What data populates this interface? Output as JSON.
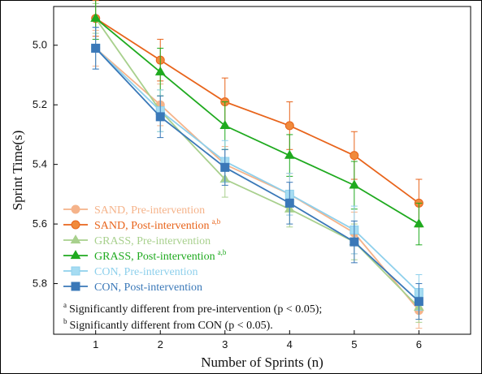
{
  "chart_data": {
    "type": "line",
    "xlabel": "Number of Sprints (n)",
    "ylabel": "Sprint Time(s)",
    "x": [
      1,
      2,
      3,
      4,
      5,
      6
    ],
    "xlim": [
      0.35,
      6.8
    ],
    "ylim": [
      4.87,
      5.97
    ],
    "y_inverted": true,
    "yticks": [
      5.0,
      5.2,
      5.4,
      5.6,
      5.8
    ],
    "ytick_labels": [
      "5.0",
      "5.2",
      "5.4",
      "5.6",
      "5.8"
    ],
    "xtick_labels": [
      "1",
      "2",
      "3",
      "4",
      "5",
      "6"
    ],
    "grid": false,
    "legend_position": "bottom-left",
    "series": [
      {
        "name": "SAND, Pre-intervention",
        "superscript": "",
        "color": "#f5b38a",
        "marker": "circle",
        "marker_fill": "#f5b38a",
        "values": [
          5.01,
          5.2,
          5.4,
          5.5,
          5.63,
          5.89
        ],
        "error": [
          0.06,
          0.07,
          0.06,
          0.07,
          0.07,
          0.06
        ]
      },
      {
        "name": "SAND, Post-intervention",
        "superscript": "a,b",
        "color": "#e8641b",
        "marker": "circle",
        "marker_fill": "#f08a3c",
        "values": [
          4.91,
          5.05,
          5.19,
          5.27,
          5.37,
          5.53
        ],
        "error": [
          0.06,
          0.07,
          0.08,
          0.08,
          0.08,
          0.08
        ]
      },
      {
        "name": "GRASS, Pre-intervention",
        "superscript": "",
        "color": "#a8d08d",
        "marker": "triangle",
        "marker_fill": "#a8d08d",
        "values": [
          4.91,
          5.22,
          5.45,
          5.55,
          5.66,
          5.88
        ],
        "error": [
          0.05,
          0.07,
          0.06,
          0.06,
          0.06,
          0.05
        ]
      },
      {
        "name": "GRASS, Post-intervention",
        "superscript": "a,b",
        "color": "#1faa1f",
        "marker": "triangle",
        "marker_fill": "#1faa1f",
        "values": [
          4.91,
          5.09,
          5.27,
          5.37,
          5.47,
          5.6
        ],
        "error": [
          0.07,
          0.08,
          0.08,
          0.07,
          0.08,
          0.07
        ]
      },
      {
        "name": "CON, Pre-intervention",
        "superscript": "",
        "color": "#8ed0ec",
        "marker": "square",
        "marker_fill": "#a6dcf2",
        "values": [
          5.01,
          5.22,
          5.39,
          5.5,
          5.62,
          5.83
        ],
        "error": [
          0.07,
          0.07,
          0.07,
          0.07,
          0.08,
          0.06
        ]
      },
      {
        "name": "CON, Post-intervention",
        "superscript": "",
        "color": "#3a78b8",
        "marker": "square",
        "marker_fill": "#3a78b8",
        "values": [
          5.01,
          5.24,
          5.41,
          5.53,
          5.66,
          5.86
        ],
        "error": [
          0.07,
          0.07,
          0.06,
          0.07,
          0.07,
          0.06
        ]
      }
    ],
    "annotations": [
      {
        "superscript": "a",
        "text": "Significantly different from pre-intervention (p < 0.05);"
      },
      {
        "superscript": "b",
        "text": "Significantly different from CON (p < 0.05)."
      }
    ]
  }
}
